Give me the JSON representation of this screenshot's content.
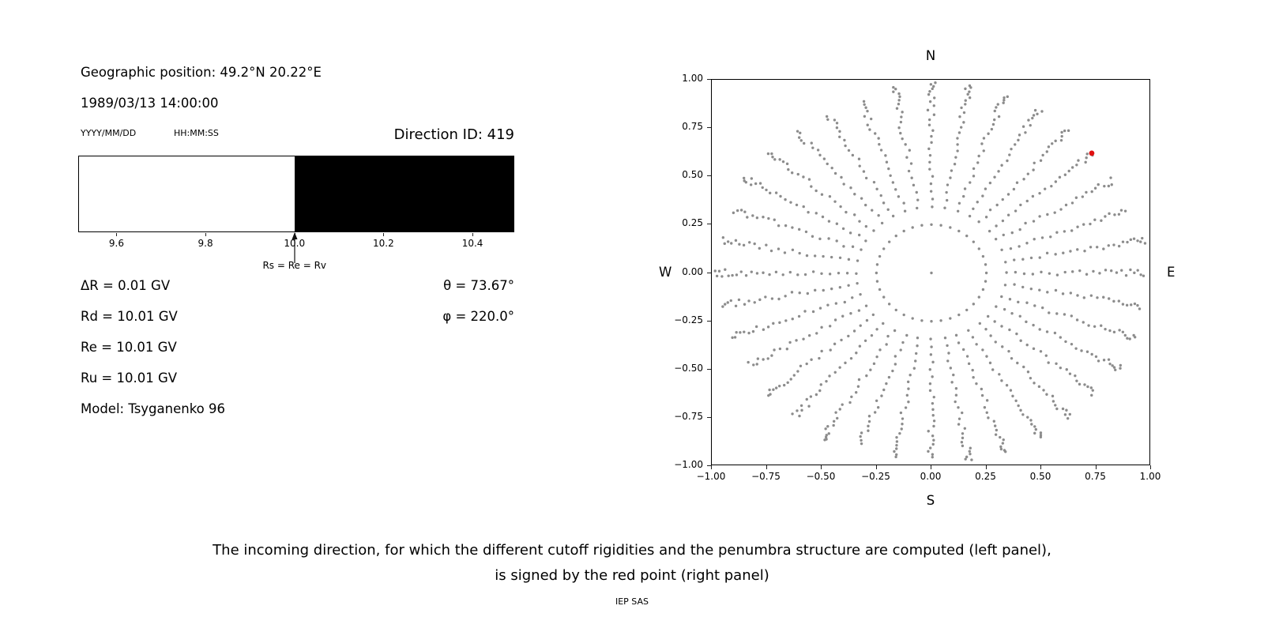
{
  "left_panel": {
    "geo_position": "Geographic position: 49.2°N 20.22°E",
    "datetime": "1989/03/13 14:00:00",
    "date_format_label": "YYYY/MM/DD",
    "time_format_label": "HH:MM:SS",
    "direction_id_label": "Direction ID: 419",
    "rigidity_lines": [
      "ΔR = 0.01 GV",
      "Rd = 10.01 GV",
      "Re = 10.01 GV",
      "Ru = 10.01 GV"
    ],
    "model_line": "Model: Tsyganenko 96",
    "theta_line": "θ = 73.67°",
    "phi_line": "φ = 220.0°"
  },
  "chart_data": [
    {
      "type": "bar",
      "name": "penumbra-strip",
      "xmin": 9.514,
      "xmax": 10.494,
      "xticks": [
        {
          "value": 9.6,
          "label": "9.6"
        },
        {
          "value": 9.8,
          "label": "9.8"
        },
        {
          "value": 10.0,
          "label": "10.0"
        },
        {
          "value": 10.2,
          "label": "10.2"
        },
        {
          "value": 10.4,
          "label": "10.4"
        }
      ],
      "segments": [
        {
          "from": 9.514,
          "to": 10.0,
          "color": "#ffffff"
        },
        {
          "from": 10.0,
          "to": 10.494,
          "color": "#000000"
        }
      ],
      "marker": {
        "x": 10.0,
        "label": "Rs = Re = Rv"
      }
    },
    {
      "type": "scatter",
      "name": "incoming-direction-grid",
      "xlim": [
        -1.0,
        1.0
      ],
      "ylim": [
        -1.0,
        1.0
      ],
      "xticks": [
        {
          "value": -1.0,
          "label": "−1.00"
        },
        {
          "value": -0.75,
          "label": "−0.75"
        },
        {
          "value": -0.5,
          "label": "−0.50"
        },
        {
          "value": -0.25,
          "label": "−0.25"
        },
        {
          "value": 0.0,
          "label": "0.00"
        },
        {
          "value": 0.25,
          "label": "0.25"
        },
        {
          "value": 0.5,
          "label": "0.50"
        },
        {
          "value": 0.75,
          "label": "0.75"
        },
        {
          "value": 1.0,
          "label": "1.00"
        }
      ],
      "yticks": [
        {
          "value": 1.0,
          "label": "1.00"
        },
        {
          "value": 0.75,
          "label": "0.75"
        },
        {
          "value": 0.5,
          "label": "0.50"
        },
        {
          "value": 0.25,
          "label": "0.25"
        },
        {
          "value": 0.0,
          "label": "0.00"
        },
        {
          "value": -0.25,
          "label": "−0.25"
        },
        {
          "value": -0.5,
          "label": "−0.50"
        },
        {
          "value": -0.75,
          "label": "−0.75"
        },
        {
          "value": -1.0,
          "label": "−1.00"
        }
      ],
      "compass": {
        "top": "N",
        "bottom": "S",
        "left": "W",
        "right": "E"
      },
      "pattern": {
        "description": "gray dots on 36 azimuthal rays every 10 deg; dot radius = sin(zenith); inner ring plus zenith steps of 2.5 deg",
        "azimuth_count": 36,
        "azimuth_step_deg": 10,
        "inner_ring_zenith_deg": 14.5,
        "zenith_min_deg": 20,
        "zenith_step_deg": 2.5,
        "zenith_max_base_deg": 70,
        "zenith_max_extra_steps": 5,
        "jitter_deg": 1.1,
        "dot_color": "#8c8c8c",
        "dot_radius_px": 1.7
      },
      "center_dot": true,
      "red_point": {
        "x": 0.73,
        "y": 0.62,
        "color": "#e01010",
        "radius_px": 3.4
      }
    }
  ],
  "caption": {
    "line1": "The incoming direction, for which the different cutoff rigidities and the penumbra structure are computed (left panel),",
    "line2": "is signed by the red point (right panel)",
    "credit": "IEP SAS"
  }
}
